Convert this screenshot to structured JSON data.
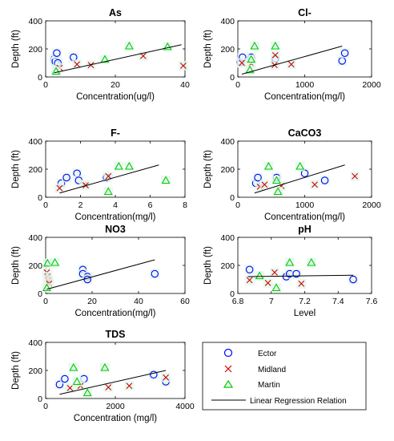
{
  "colors": {
    "ector": "#0000FF",
    "midland": "#D00000",
    "martin": "#00CC00",
    "regression": "#000000",
    "marker_bg": "#E3F7EE"
  },
  "legend": {
    "entries": [
      {
        "label": "Ector",
        "marker": "circle",
        "color": "#0000FF"
      },
      {
        "label": "Midland",
        "marker": "x",
        "color": "#D00000"
      },
      {
        "label": "Martin",
        "marker": "triangle",
        "color": "#00CC00"
      },
      {
        "label": "Linear Regression Relation",
        "marker": "line",
        "color": "#000000"
      }
    ]
  },
  "chart_data": [
    {
      "type": "scatter",
      "title": "As",
      "xlabel": "Concentration(ug/l)",
      "ylabel": "Depth (ft)",
      "xlim": [
        0,
        40
      ],
      "ylim": [
        0,
        400
      ],
      "xticks": [
        "0",
        "20",
        "40"
      ],
      "yticks": [
        "0",
        "200",
        "400"
      ],
      "series": [
        {
          "name": "Ector",
          "marker": "circle",
          "points": [
            [
              2.5,
              130
            ],
            [
              2.8,
              110
            ],
            [
              3.2,
              170
            ],
            [
              3.5,
              100
            ],
            [
              8,
              140
            ]
          ]
        },
        {
          "name": "Midland",
          "marker": "x",
          "points": [
            [
              4,
              65
            ],
            [
              9,
              90
            ],
            [
              13,
              85
            ],
            [
              28,
              150
            ],
            [
              39.5,
              80
            ]
          ]
        },
        {
          "name": "Martin",
          "marker": "triangle",
          "points": [
            [
              3,
              40
            ],
            [
              17,
              125
            ],
            [
              24,
              220
            ],
            [
              35,
              215
            ]
          ]
        }
      ],
      "regression": [
        [
          2.5,
          30
        ],
        [
          39,
          230
        ]
      ]
    },
    {
      "type": "scatter",
      "title": "Cl-",
      "xlabel": "Concentration(mg/l)",
      "ylabel": "Depth (ft)",
      "xlim": [
        0,
        2000
      ],
      "ylim": [
        0,
        400
      ],
      "xticks": [
        "0",
        "1000",
        "2000"
      ],
      "yticks": [
        "0",
        "200",
        "400"
      ],
      "series": [
        {
          "name": "Ector",
          "marker": "circle",
          "points": [
            [
              40,
              105
            ],
            [
              70,
              140
            ],
            [
              200,
              140
            ],
            [
              560,
              130
            ],
            [
              1560,
              115
            ],
            [
              1600,
              170
            ]
          ]
        },
        {
          "name": "Midland",
          "marker": "x",
          "points": [
            [
              60,
              100
            ],
            [
              200,
              95
            ],
            [
              550,
              85
            ],
            [
              560,
              155
            ],
            [
              800,
              90
            ]
          ]
        },
        {
          "name": "Martin",
          "marker": "triangle",
          "points": [
            [
              180,
              50
            ],
            [
              200,
              125
            ],
            [
              250,
              220
            ],
            [
              560,
              220
            ]
          ]
        }
      ],
      "regression": [
        [
          60,
          20
        ],
        [
          1560,
          220
        ]
      ]
    },
    {
      "type": "scatter",
      "title": "F-",
      "xlabel": "Concentration(mg/l)",
      "ylabel": "Depth (ft)",
      "xlim": [
        0,
        8
      ],
      "ylim": [
        0,
        400
      ],
      "xticks": [
        "0",
        "2",
        "4",
        "6",
        "8"
      ],
      "yticks": [
        "0",
        "200",
        "400"
      ],
      "series": [
        {
          "name": "Ector",
          "marker": "circle",
          "points": [
            [
              0.9,
              100
            ],
            [
              1.2,
              140
            ],
            [
              1.8,
              170
            ],
            [
              1.9,
              120
            ],
            [
              3.5,
              140
            ]
          ]
        },
        {
          "name": "Midland",
          "marker": "x",
          "points": [
            [
              0.8,
              65
            ],
            [
              2.2,
              90
            ],
            [
              2.3,
              85
            ],
            [
              3.6,
              150
            ]
          ]
        },
        {
          "name": "Martin",
          "marker": "triangle",
          "points": [
            [
              3.6,
              40
            ],
            [
              4.2,
              220
            ],
            [
              4.8,
              220
            ],
            [
              6.9,
              120
            ]
          ]
        }
      ],
      "regression": [
        [
          0.8,
          30
        ],
        [
          6.5,
          230
        ]
      ]
    },
    {
      "type": "scatter",
      "title": "CaCO3",
      "xlabel": "Concentration(mg/l)",
      "ylabel": "Depth (ft)",
      "xlim": [
        0,
        2000
      ],
      "ylim": [
        0,
        400
      ],
      "xticks": [
        "0",
        "1000",
        "2000"
      ],
      "yticks": [
        "0",
        "200",
        "400"
      ],
      "series": [
        {
          "name": "Ector",
          "marker": "circle",
          "points": [
            [
              270,
              100
            ],
            [
              300,
              140
            ],
            [
              580,
              140
            ],
            [
              1000,
              170
            ],
            [
              1300,
              120
            ]
          ]
        },
        {
          "name": "Midland",
          "marker": "x",
          "points": [
            [
              330,
              75
            ],
            [
              400,
              90
            ],
            [
              650,
              80
            ],
            [
              1150,
              90
            ],
            [
              1750,
              150
            ]
          ]
        },
        {
          "name": "Martin",
          "marker": "triangle",
          "points": [
            [
              460,
              220
            ],
            [
              580,
              120
            ],
            [
              600,
              40
            ],
            [
              930,
              220
            ]
          ]
        }
      ],
      "regression": [
        [
          250,
          30
        ],
        [
          1600,
          230
        ]
      ]
    },
    {
      "type": "scatter",
      "title": "NO3",
      "xlabel": "Concentration(mg/l)",
      "ylabel": "Depth (ft)",
      "xlim": [
        0,
        60
      ],
      "ylim": [
        0,
        400
      ],
      "xticks": [
        "0",
        "20",
        "40",
        "60"
      ],
      "yticks": [
        "0",
        "200",
        "400"
      ],
      "series": [
        {
          "name": "Ector",
          "marker": "circle",
          "points": [
            [
              16,
              170
            ],
            [
              16,
              140
            ],
            [
              18,
              120
            ],
            [
              18,
              100
            ],
            [
              47,
              140
            ]
          ]
        },
        {
          "name": "Midland",
          "marker": "x",
          "points": [
            [
              0.5,
              150
            ],
            [
              0.8,
              120
            ],
            [
              1,
              100
            ],
            [
              1.2,
              85
            ],
            [
              1.5,
              70
            ]
          ]
        },
        {
          "name": "Martin",
          "marker": "triangle",
          "points": [
            [
              0.5,
              40
            ],
            [
              0.8,
              215
            ],
            [
              4,
              220
            ]
          ]
        }
      ],
      "regression": [
        [
          0.5,
          30
        ],
        [
          47,
          240
        ]
      ]
    },
    {
      "type": "scatter",
      "title": "pH",
      "xlabel": "Level",
      "ylabel": "Depth (ft)",
      "xlim": [
        6.8,
        7.6
      ],
      "ylim": [
        0,
        400
      ],
      "xticks": [
        "6.8",
        "7",
        "7.2",
        "7.4",
        "7.6"
      ],
      "yticks": [
        "0",
        "200",
        "400"
      ],
      "series": [
        {
          "name": "Ector",
          "marker": "circle",
          "points": [
            [
              6.87,
              170
            ],
            [
              7.09,
              120
            ],
            [
              7.11,
              140
            ],
            [
              7.15,
              140
            ],
            [
              7.49,
              100
            ]
          ]
        },
        {
          "name": "Midland",
          "marker": "x",
          "points": [
            [
              6.87,
              95
            ],
            [
              6.98,
              75
            ],
            [
              7.02,
              150
            ],
            [
              7.18,
              70
            ]
          ]
        },
        {
          "name": "Martin",
          "marker": "triangle",
          "points": [
            [
              6.93,
              125
            ],
            [
              7.03,
              40
            ],
            [
              7.11,
              220
            ],
            [
              7.24,
              220
            ]
          ]
        }
      ],
      "regression": [
        [
          6.86,
          120
        ],
        [
          7.49,
          130
        ]
      ]
    },
    {
      "type": "scatter",
      "title": "TDS",
      "xlabel": "Concentration (mg/l)",
      "ylabel": "Depth (ft)",
      "xlim": [
        0,
        4000
      ],
      "ylim": [
        0,
        400
      ],
      "xticks": [
        "0",
        "2000",
        "4000"
      ],
      "yticks": [
        "0",
        "200",
        "400"
      ],
      "series": [
        {
          "name": "Ector",
          "marker": "circle",
          "points": [
            [
              400,
              100
            ],
            [
              550,
              140
            ],
            [
              1100,
              140
            ],
            [
              3100,
              170
            ],
            [
              3450,
              120
            ]
          ]
        },
        {
          "name": "Midland",
          "marker": "x",
          "points": [
            [
              700,
              75
            ],
            [
              1000,
              90
            ],
            [
              1800,
              80
            ],
            [
              2400,
              90
            ],
            [
              3450,
              150
            ]
          ]
        },
        {
          "name": "Martin",
          "marker": "triangle",
          "points": [
            [
              800,
              220
            ],
            [
              900,
              120
            ],
            [
              1200,
              40
            ],
            [
              1700,
              220
            ]
          ]
        }
      ],
      "regression": [
        [
          400,
          30
        ],
        [
          3450,
          200
        ]
      ]
    }
  ]
}
